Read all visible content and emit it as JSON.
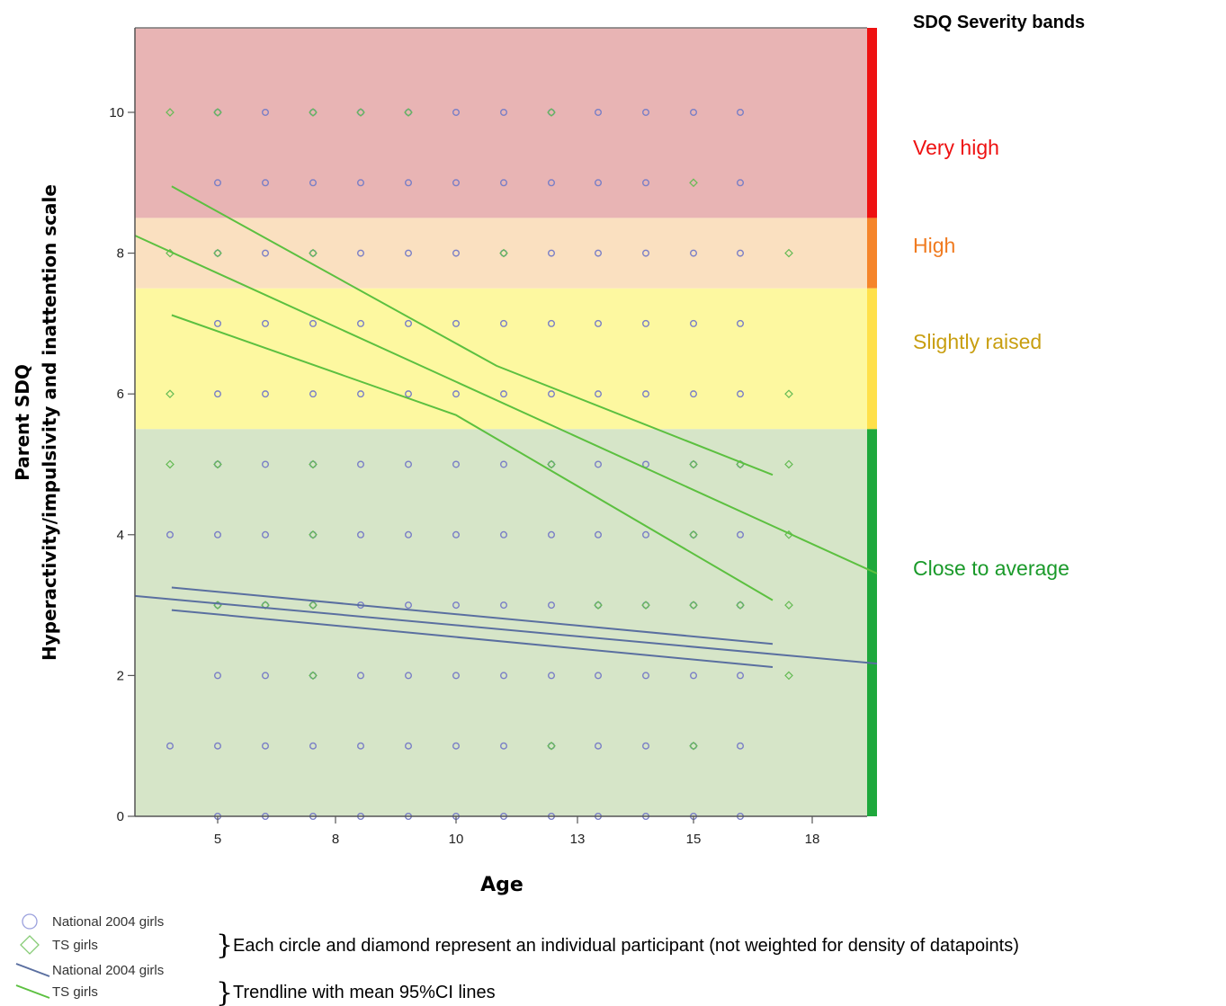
{
  "chart_data": {
    "type": "scatter",
    "xlabel": "Age",
    "ylabel": [
      "Parent SDQ",
      "Hyperactivity/impulsivity and inattention scale"
    ],
    "xlim": [
      3.2,
      19.8
    ],
    "ylim": [
      0,
      11.2
    ],
    "x_ticks": [
      {
        "value": 5,
        "label": "5"
      },
      {
        "value": 8,
        "label": "8"
      },
      {
        "value": 10,
        "label": "10"
      },
      {
        "value": 13,
        "label": "13"
      },
      {
        "value": 15,
        "label": "15"
      },
      {
        "value": 18,
        "label": "18"
      }
    ],
    "y_ticks": [
      {
        "value": 0,
        "label": "0"
      },
      {
        "value": 2,
        "label": "2"
      },
      {
        "value": 4,
        "label": "4"
      },
      {
        "value": 6,
        "label": "6"
      },
      {
        "value": 8,
        "label": "8"
      },
      {
        "value": 10,
        "label": "10"
      }
    ],
    "bands": [
      {
        "label": "Very high",
        "from": 8.5,
        "to": 11.2,
        "fill": "#e8b4b4",
        "bar": "#ee1111",
        "text_color": "#ee1111"
      },
      {
        "label": "High",
        "from": 7.5,
        "to": 8.5,
        "fill": "#fae0c0",
        "bar": "#f5852a",
        "text_color": "#f07b20"
      },
      {
        "label": "Slightly raised",
        "from": 5.5,
        "to": 7.5,
        "fill": "#fdf8a0",
        "bar": "#ffe04a",
        "text_color": "#c89e10"
      },
      {
        "label": "Close to average",
        "from": 0,
        "to": 5.5,
        "fill": "#d6e5c8",
        "bar": "#1ea83c",
        "text_color": "#1a9a2a"
      }
    ],
    "bands_heading": "SDQ Severity bands",
    "series": [
      {
        "name": "National 2004 girls",
        "marker": "circle",
        "color": "#7a7fc6",
        "x": [
          5,
          6,
          7,
          8,
          9,
          10,
          11,
          12,
          13,
          14,
          15,
          16
        ],
        "y_sets": {
          "10": [
            5,
            6,
            7,
            8,
            9,
            10,
            11,
            12,
            13,
            14,
            15,
            16
          ],
          "9": [
            5,
            6,
            7,
            8,
            9,
            10,
            11,
            12,
            13,
            14,
            16
          ],
          "8": [
            5,
            6,
            7,
            8,
            9,
            10,
            11,
            12,
            13,
            14,
            15,
            16
          ],
          "7": [
            5,
            6,
            7,
            8,
            9,
            10,
            11,
            12,
            13,
            14,
            15,
            16
          ],
          "6": [
            5,
            6,
            7,
            8,
            9,
            10,
            11,
            12,
            13,
            14,
            15,
            16
          ],
          "5": [
            5,
            6,
            7,
            8,
            9,
            10,
            11,
            12,
            13,
            14,
            15,
            16
          ],
          "4": [
            4,
            5,
            6,
            7,
            8,
            9,
            10,
            11,
            12,
            13,
            14,
            15,
            16
          ],
          "3": [
            5,
            6,
            7,
            8,
            9,
            10,
            11,
            12,
            13,
            14,
            15,
            16
          ],
          "2": [
            5,
            6,
            7,
            8,
            9,
            10,
            11,
            12,
            13,
            14,
            15,
            16
          ],
          "1": [
            4,
            5,
            6,
            7,
            8,
            9,
            10,
            11,
            12,
            13,
            14,
            15,
            16
          ],
          "0": [
            5,
            6,
            7,
            8,
            9,
            10,
            11,
            12,
            13,
            14,
            15,
            16
          ]
        }
      },
      {
        "name": "TS girls",
        "marker": "diamond",
        "color": "#66bb55",
        "points": [
          [
            4,
            10
          ],
          [
            5,
            10
          ],
          [
            7,
            10
          ],
          [
            8,
            10
          ],
          [
            9,
            10
          ],
          [
            12,
            10
          ],
          [
            15,
            9
          ],
          [
            4,
            8
          ],
          [
            5,
            8
          ],
          [
            7,
            8
          ],
          [
            11,
            8
          ],
          [
            17,
            8
          ],
          [
            4,
            6
          ],
          [
            17,
            6
          ],
          [
            4,
            5
          ],
          [
            17,
            5
          ],
          [
            5,
            5
          ],
          [
            7,
            5
          ],
          [
            12,
            5
          ],
          [
            15,
            5
          ],
          [
            16,
            5
          ],
          [
            7,
            4
          ],
          [
            15,
            4
          ],
          [
            17,
            4
          ],
          [
            5,
            3
          ],
          [
            6,
            3
          ],
          [
            7,
            3
          ],
          [
            13,
            3
          ],
          [
            14,
            3
          ],
          [
            15,
            3
          ],
          [
            16,
            3
          ],
          [
            17,
            3
          ],
          [
            7,
            2
          ],
          [
            17,
            2
          ],
          [
            12,
            1
          ],
          [
            15,
            1
          ]
        ]
      }
    ],
    "trendlines": [
      {
        "name": "National 2004 girls",
        "color": "#5a6fa0",
        "kind": "fit",
        "points": [
          [
            3.2,
            3.13
          ],
          [
            19.8,
            2.17
          ]
        ]
      },
      {
        "name": "National 2004 girls",
        "color": "#5a6fa0",
        "kind": "ci_upper",
        "points": [
          [
            4,
            3.25
          ],
          [
            17,
            2.45
          ]
        ]
      },
      {
        "name": "National 2004 girls",
        "color": "#5a6fa0",
        "kind": "ci_lower",
        "points": [
          [
            4,
            2.93
          ],
          [
            17,
            2.12
          ]
        ]
      },
      {
        "name": "TS girls",
        "color": "#5cc040",
        "kind": "fit",
        "points": [
          [
            3.2,
            8.25
          ],
          [
            19.8,
            3.45
          ]
        ]
      },
      {
        "name": "TS girls",
        "color": "#5cc040",
        "kind": "ci_upper",
        "points": [
          [
            4,
            8.95
          ],
          [
            11,
            6.4
          ],
          [
            17,
            4.85
          ]
        ]
      },
      {
        "name": "TS girls",
        "color": "#5cc040",
        "kind": "ci_lower",
        "points": [
          [
            4,
            7.12
          ],
          [
            10,
            5.7
          ],
          [
            17,
            3.07
          ]
        ]
      }
    ],
    "legend": [
      {
        "label": "National 2004 girls",
        "kind": "circle",
        "color": "#9aa0dd"
      },
      {
        "label": "TS girls",
        "kind": "diamond",
        "color": "#88cc77"
      },
      {
        "label": "National 2004 girls",
        "kind": "line",
        "color": "#5a6fa0"
      },
      {
        "label": "TS girls",
        "kind": "line",
        "color": "#5cc040"
      }
    ],
    "legend_notes": [
      "Each circle and diamond represent an individual participant (not weighted for density of datapoints)",
      "Trendline with mean 95%CI lines"
    ]
  }
}
